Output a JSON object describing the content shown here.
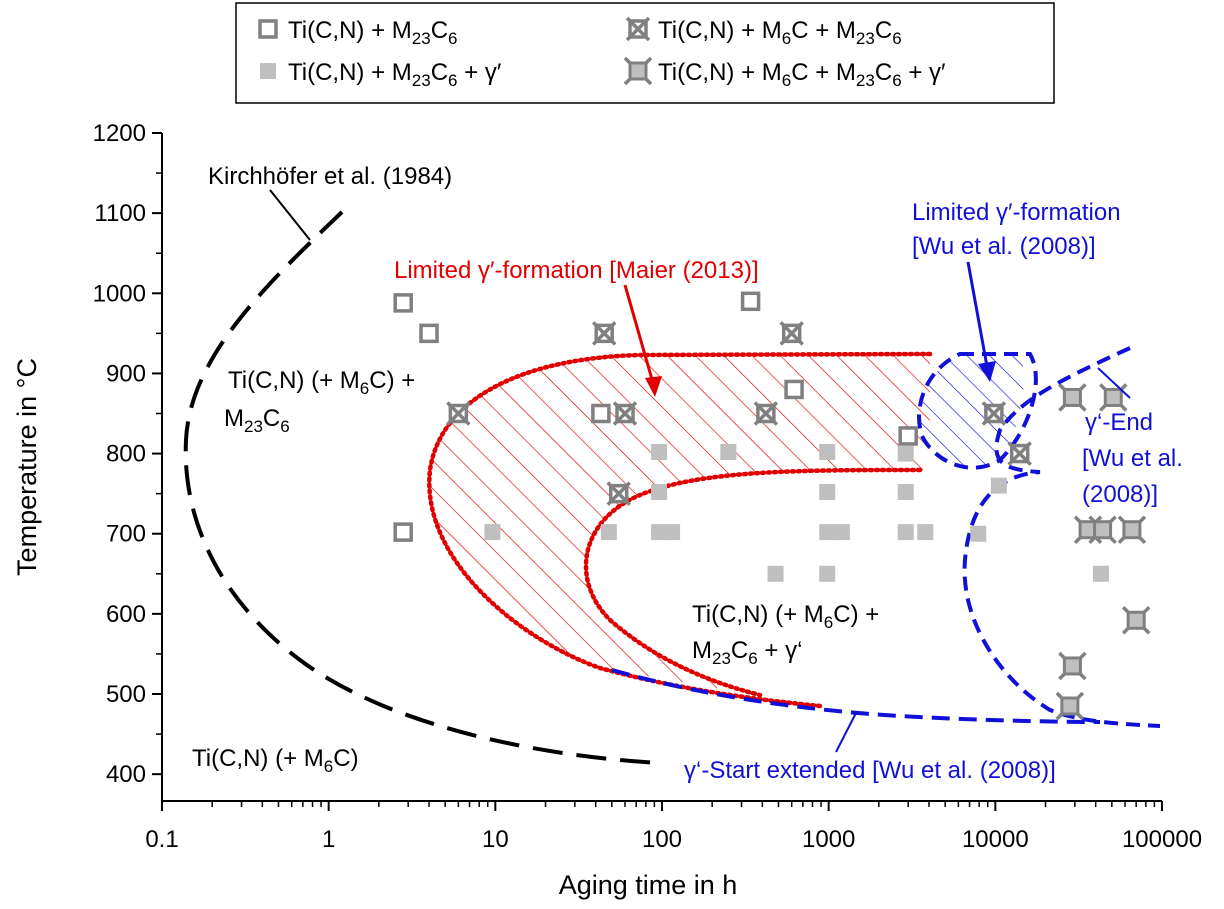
{
  "chart_data": {
    "type": "scatter",
    "xlabel": "Aging time in h",
    "ylabel": "Temperature in °C",
    "xscale": "log",
    "xlim": [
      0.1,
      100000
    ],
    "ylim": [
      400,
      1200
    ],
    "x_ticks": [
      "0.1",
      "1",
      "10",
      "100",
      "1000",
      "10000",
      "100000"
    ],
    "y_ticks": [
      "400",
      "500",
      "600",
      "700",
      "800",
      "900",
      "1000",
      "1100",
      "1200"
    ],
    "legend": {
      "placement": "top",
      "entries": [
        {
          "text": "Ti(C,N) + M",
          "sub1": "23",
          "mid": "C",
          "sub2": "6",
          "tail": "",
          "marker": "open-square"
        },
        {
          "text": "Ti(C,N) + M",
          "sub1": "6",
          "mid": "C + M",
          "sub2": "23",
          "mid2": "C",
          "sub3": "6",
          "tail": "",
          "marker": "x-square"
        },
        {
          "text": "Ti(C,N) + M",
          "sub1": "23",
          "mid": "C",
          "sub2": "6",
          "tail": " + γ′",
          "marker": "filled-square"
        },
        {
          "text": "Ti(C,N) + M",
          "sub1": "6",
          "mid": "C + M",
          "sub2": "23",
          "mid2": "C",
          "sub3": "6",
          "tail": " + γ′",
          "marker": "star-square"
        }
      ]
    },
    "series": [
      {
        "marker": "open-square",
        "points": [
          [
            2.8,
            988
          ],
          [
            4,
            950
          ],
          [
            2.8,
            702
          ],
          [
            43,
            850
          ],
          [
            340,
            990
          ],
          [
            620,
            880
          ],
          [
            3000,
            822
          ]
        ]
      },
      {
        "marker": "x-square",
        "points": [
          [
            6,
            850
          ],
          [
            45,
            950
          ],
          [
            60,
            850
          ],
          [
            55,
            750
          ],
          [
            420,
            850
          ],
          [
            600,
            950
          ],
          [
            9800,
            850
          ],
          [
            14000,
            800
          ]
        ]
      },
      {
        "marker": "filled-square",
        "points": [
          [
            9.6,
            702
          ],
          [
            48,
            702
          ],
          [
            96,
            802
          ],
          [
            96,
            752
          ],
          [
            96,
            702
          ],
          [
            115,
            702
          ],
          [
            250,
            802
          ],
          [
            480,
            650
          ],
          [
            980,
            802
          ],
          [
            980,
            752
          ],
          [
            980,
            702
          ],
          [
            1200,
            702
          ],
          [
            980,
            650
          ],
          [
            2900,
            800
          ],
          [
            2900,
            752
          ],
          [
            2900,
            702
          ],
          [
            3800,
            702
          ],
          [
            7900,
            700
          ],
          [
            10500,
            760
          ],
          [
            43000,
            650
          ]
        ]
      },
      {
        "marker": "star-square",
        "points": [
          [
            29000,
            870
          ],
          [
            51000,
            870
          ],
          [
            36000,
            705
          ],
          [
            44000,
            705
          ],
          [
            66000,
            705
          ],
          [
            29000,
            535
          ],
          [
            28000,
            485
          ],
          [
            70000,
            592
          ]
        ]
      }
    ],
    "regions": [
      {
        "label": "Ti(C,N) (+ M6C) + M23C6"
      },
      {
        "label": "Ti(C,N) (+ M6C) + M23C6 + γ‘"
      },
      {
        "label": "Ti(C,N) (+ M6C)"
      }
    ]
  },
  "annotations": {
    "kirchhofer": "Kirchhöfer et al. (1984)",
    "maier": "Limited γ′-formation [Maier (2013)]",
    "wu_limited_1": "Limited γ′-formation",
    "wu_limited_2": "[Wu et al. (2008)]",
    "gamma_end_1": "γ‘-End",
    "gamma_end_2": "[Wu et al.",
    "gamma_end_3": "(2008)]",
    "gamma_start": "γ‘-Start extended [Wu et al. (2008)]",
    "region_upper_1": "Ti(C,N) (+ M",
    "region_upper_1_sub": "6",
    "region_upper_1_tail": "C) +",
    "region_upper_2": "M",
    "region_upper_2_sub1": "23",
    "region_upper_2_mid": "C",
    "region_upper_2_sub2": "6",
    "region_mid_1": "Ti(C,N) (+ M",
    "region_mid_1_sub": "6",
    "region_mid_1_tail": "C) +",
    "region_mid_2": "M",
    "region_mid_2_sub1": "23",
    "region_mid_2_mid": "C",
    "region_mid_2_sub2": "6",
    "region_mid_2_tail": " + γ‘",
    "region_low": "Ti(C,N) (+ M",
    "region_low_sub": "6",
    "region_low_tail": "C)"
  },
  "colors": {
    "marker_gray": "#808080",
    "marker_fill": "#bfbfbf",
    "red": "#e00000",
    "blue": "#1010d8",
    "black": "#000000"
  }
}
